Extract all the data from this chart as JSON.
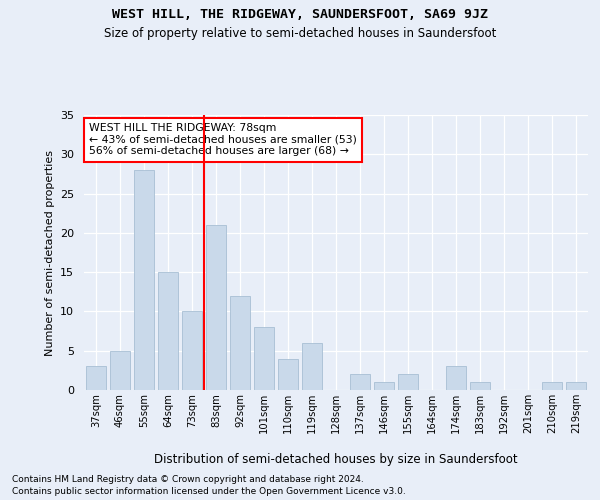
{
  "title": "WEST HILL, THE RIDGEWAY, SAUNDERSFOOT, SA69 9JZ",
  "subtitle": "Size of property relative to semi-detached houses in Saundersfoot",
  "xlabel": "Distribution of semi-detached houses by size in Saundersfoot",
  "ylabel": "Number of semi-detached properties",
  "categories": [
    "37sqm",
    "46sqm",
    "55sqm",
    "64sqm",
    "73sqm",
    "83sqm",
    "92sqm",
    "101sqm",
    "110sqm",
    "119sqm",
    "128sqm",
    "137sqm",
    "146sqm",
    "155sqm",
    "164sqm",
    "174sqm",
    "183sqm",
    "192sqm",
    "201sqm",
    "210sqm",
    "219sqm"
  ],
  "values": [
    3,
    5,
    28,
    15,
    10,
    21,
    12,
    8,
    4,
    6,
    0,
    2,
    1,
    2,
    0,
    3,
    1,
    0,
    0,
    1,
    1
  ],
  "bar_color": "#c9d9ea",
  "bar_edge_color": "#a8bfd4",
  "vline_x": 4.5,
  "vline_color": "red",
  "annotation_text": "WEST HILL THE RIDGEWAY: 78sqm\n← 43% of semi-detached houses are smaller (53)\n56% of semi-detached houses are larger (68) →",
  "annotation_box_color": "white",
  "annotation_box_edge": "red",
  "ylim": [
    0,
    35
  ],
  "yticks": [
    0,
    5,
    10,
    15,
    20,
    25,
    30,
    35
  ],
  "footer1": "Contains HM Land Registry data © Crown copyright and database right 2024.",
  "footer2": "Contains public sector information licensed under the Open Government Licence v3.0.",
  "bg_color": "#e8eef8",
  "plot_bg_color": "#e8eef8"
}
